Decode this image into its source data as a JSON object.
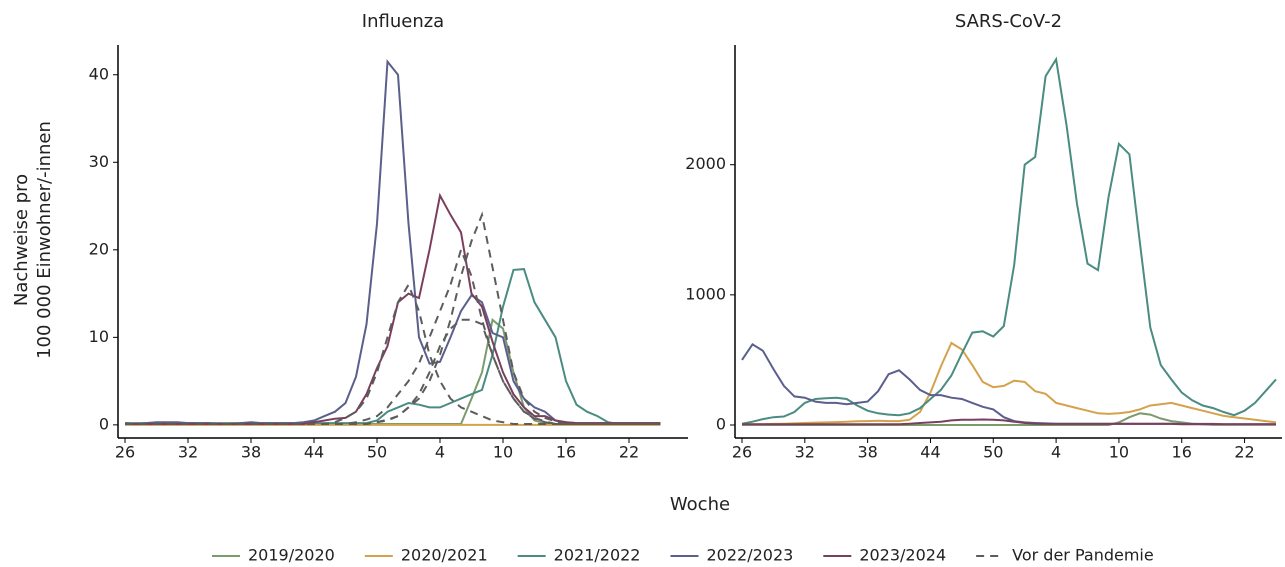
{
  "chart_data": [
    {
      "type": "line",
      "title": "Influenza",
      "ylabel": [
        "Nachweise pro",
        "100 000 Einwohner/-innen"
      ],
      "xlabel": "Woche",
      "legend": "bottom",
      "categories": [
        26,
        null,
        null,
        null,
        null,
        null,
        32,
        null,
        null,
        null,
        null,
        null,
        38,
        null,
        null,
        null,
        null,
        null,
        44,
        null,
        null,
        null,
        null,
        null,
        50,
        null,
        null,
        null,
        null,
        null,
        4,
        null,
        null,
        null,
        null,
        null,
        10,
        null,
        null,
        null,
        null,
        null,
        16,
        null,
        null,
        null,
        null,
        null,
        22,
        null,
        null,
        null
      ],
      "ylim": [
        -1.5,
        43.4
      ],
      "yticks": [
        0,
        10,
        20,
        30,
        40
      ],
      "series": [
        {
          "name": "2019/2020",
          "color": "#7a9b6b",
          "values": [
            0.1,
            0.1,
            0.1,
            0.1,
            0.1,
            0.1,
            0.1,
            0.1,
            0.1,
            0.1,
            0.1,
            0.1,
            0.1,
            0.1,
            0.1,
            0.1,
            0.1,
            0.1,
            0.1,
            0.1,
            0.1,
            0.1,
            0.1,
            0.1,
            0.1,
            0.1,
            0.1,
            0.1,
            0.1,
            0.1,
            0.1,
            0.1,
            0.1,
            3,
            6,
            12,
            11,
            6,
            2,
            0.5,
            0.2,
            0.1,
            0.1,
            0.1,
            0.1,
            0.1,
            0.1,
            0.1,
            0.1,
            0.1,
            0.1,
            0.1
          ]
        },
        {
          "name": "2020/2021",
          "color": "#d4a24c",
          "values": [
            0,
            0,
            0,
            0,
            0,
            0,
            0,
            0,
            0,
            0,
            0,
            0,
            0,
            0,
            0,
            0,
            0,
            0,
            0,
            0,
            0,
            0,
            0,
            0,
            0,
            0,
            0,
            0,
            0,
            0,
            0,
            0,
            0,
            0,
            0,
            0,
            0,
            0,
            0,
            0,
            0,
            0,
            0,
            0,
            0,
            0,
            0,
            0,
            0,
            0,
            0,
            0
          ]
        },
        {
          "name": "2021/2022",
          "color": "#4a8c82",
          "values": [
            0.2,
            0.2,
            0.2,
            0.2,
            0.2,
            0.2,
            0.2,
            0.2,
            0.2,
            0.2,
            0.2,
            0.2,
            0.2,
            0.2,
            0.2,
            0.2,
            0.2,
            0.2,
            0.2,
            0.2,
            0.2,
            0.2,
            0.2,
            0.2,
            0.5,
            1.5,
            2,
            2.5,
            2.3,
            2,
            2,
            2.5,
            3,
            3.5,
            4,
            8,
            13.5,
            17.7,
            17.8,
            14,
            12,
            10,
            5,
            2.3,
            1.5,
            1,
            0.3,
            0.1,
            0.1,
            0.1,
            0.1,
            0.1
          ]
        },
        {
          "name": "2022/2023",
          "color": "#5a5f8c",
          "values": [
            0.2,
            0.1,
            0.2,
            0.3,
            0.3,
            0.3,
            0.2,
            0.2,
            0.2,
            0.1,
            0.1,
            0.2,
            0.3,
            0.2,
            0.2,
            0.2,
            0.2,
            0.3,
            0.5,
            1,
            1.5,
            2.5,
            5.5,
            11.5,
            23,
            41.5,
            40,
            23,
            10,
            7,
            7.2,
            10,
            13,
            14.8,
            14,
            10.5,
            10,
            5,
            3,
            2,
            1.5,
            0.5,
            0.3,
            0.2,
            0.2,
            0.2,
            0.2,
            0.2,
            0.2,
            0.2,
            0.2,
            0.2
          ]
        },
        {
          "name": "2023/2024",
          "color": "#7b3f5e",
          "values": [
            0.1,
            0.1,
            0.1,
            0.1,
            0.1,
            0.1,
            0.1,
            0.1,
            0.1,
            0.1,
            0.1,
            0.1,
            0.1,
            0.1,
            0.1,
            0.1,
            0.1,
            0.1,
            0.3,
            0.5,
            0.7,
            0.8,
            1.5,
            3.5,
            6.5,
            9,
            14,
            15,
            14.5,
            20,
            26.2,
            24,
            22,
            15,
            13.5,
            9.5,
            6,
            3.5,
            2,
            1,
            1,
            0.5,
            0.3,
            0.2,
            0.2,
            0.2,
            0.2,
            0.2,
            0.2,
            0.2,
            0.2,
            0.2
          ]
        },
        {
          "name": "Vor der Pandemie",
          "color": "#5c5c5c",
          "dashed": true,
          "values": [
            [
              0.1,
              0.1,
              0.1,
              0.1,
              0.1,
              0.1,
              0.1,
              0.1,
              0.1,
              0.1,
              0.1,
              0.1,
              0.1,
              0.1,
              0.1,
              0.1,
              0.1,
              0.1,
              0.1,
              0.1,
              0.3,
              0.8,
              1.5,
              3,
              6,
              10,
              14,
              16,
              13,
              8,
              5,
              3,
              2,
              1.5,
              1,
              0.5,
              0.3,
              0.1,
              0.1,
              0.1,
              0.1,
              0.1,
              0.1,
              0.1,
              0.1,
              0.1,
              0.1,
              0.1,
              0.1,
              0.1,
              0.1,
              0.1
            ],
            [
              0.1,
              0.1,
              0.1,
              0.1,
              0.1,
              0.1,
              0.1,
              0.1,
              0.1,
              0.1,
              0.1,
              0.1,
              0.1,
              0.1,
              0.1,
              0.1,
              0.1,
              0.1,
              0.1,
              0.1,
              0.1,
              0.1,
              0.1,
              0.1,
              0.3,
              0.6,
              1,
              2,
              3,
              5,
              8,
              12,
              17,
              21,
              24,
              18,
              12,
              6,
              3,
              1.5,
              0.8,
              0.4,
              0.1,
              0.1,
              0.1,
              0.1,
              0.1,
              0.1,
              0.1,
              0.1,
              0.1,
              0.1
            ],
            [
              0.1,
              0.1,
              0.1,
              0.1,
              0.1,
              0.1,
              0.1,
              0.1,
              0.1,
              0.1,
              0.1,
              0.1,
              0.1,
              0.1,
              0.1,
              0.1,
              0.1,
              0.1,
              0.1,
              0.1,
              0.1,
              0.1,
              0.3,
              0.6,
              1,
              2,
              3.5,
              5,
              7,
              10,
              13,
              16,
              20,
              17,
              12,
              8,
              5,
              3,
              1.5,
              0.8,
              0.4,
              0.1,
              0.1,
              0.1,
              0.1,
              0.1,
              0.1,
              0.1,
              0.1,
              0.1,
              0.1,
              0.1
            ],
            [
              0.1,
              0.1,
              0.1,
              0.1,
              0.1,
              0.1,
              0.1,
              0.1,
              0.1,
              0.1,
              0.1,
              0.1,
              0.1,
              0.1,
              0.1,
              0.1,
              0.1,
              0.1,
              0.1,
              0.1,
              0.1,
              0.1,
              0.1,
              0.1,
              0.3,
              0.5,
              1,
              2,
              3.5,
              6,
              9,
              11,
              12,
              12,
              11.5,
              8,
              5,
              3,
              1.5,
              0.7,
              0.3,
              0.1,
              0.1,
              0.1,
              0.1,
              0.1,
              0.1,
              0.1,
              0.1,
              0.1,
              0.1,
              0.1
            ]
          ]
        }
      ]
    },
    {
      "type": "line",
      "title": "SARS-CoV-2",
      "categories": [
        26,
        null,
        null,
        null,
        null,
        null,
        32,
        null,
        null,
        null,
        null,
        null,
        38,
        null,
        null,
        null,
        null,
        null,
        44,
        null,
        null,
        null,
        null,
        null,
        50,
        null,
        null,
        null,
        null,
        null,
        4,
        null,
        null,
        null,
        null,
        null,
        10,
        null,
        null,
        null,
        null,
        null,
        16,
        null,
        null,
        null,
        null,
        null,
        22,
        null,
        null,
        null
      ],
      "ylim": [
        -100,
        2920
      ],
      "yticks": [
        0,
        1000,
        2000
      ],
      "series": [
        {
          "color": "#7a9b6b",
          "values": [
            0,
            0,
            0,
            0,
            0,
            0,
            0,
            0,
            0,
            0,
            0,
            0,
            0,
            0,
            0,
            0,
            0,
            0,
            0,
            0,
            0,
            0,
            0,
            0,
            0,
            0,
            0,
            0,
            0,
            0,
            0,
            0,
            0,
            0,
            0,
            0,
            20,
            60,
            90,
            80,
            50,
            30,
            20,
            10,
            5,
            2,
            2,
            2,
            2,
            2,
            2,
            2
          ]
        },
        {
          "color": "#d4a24c",
          "values": [
            5,
            5,
            5,
            8,
            10,
            12,
            15,
            18,
            20,
            22,
            25,
            28,
            30,
            32,
            30,
            30,
            40,
            100,
            250,
            450,
            630,
            580,
            460,
            330,
            290,
            300,
            340,
            330,
            260,
            240,
            170,
            150,
            130,
            110,
            90,
            85,
            90,
            100,
            120,
            150,
            160,
            170,
            150,
            130,
            110,
            90,
            70,
            60,
            50,
            40,
            30,
            20
          ]
        },
        {
          "color": "#4a8c82",
          "values": [
            10,
            25,
            45,
            60,
            65,
            100,
            170,
            200,
            205,
            210,
            200,
            150,
            110,
            90,
            80,
            75,
            90,
            130,
            200,
            270,
            380,
            550,
            710,
            720,
            680,
            760,
            1230,
            2000,
            2060,
            2680,
            2810,
            2300,
            1700,
            1240,
            1190,
            1750,
            2160,
            2080,
            1400,
            750,
            460,
            350,
            250,
            190,
            150,
            130,
            100,
            75,
            110,
            170,
            260,
            350
          ]
        },
        {
          "color": "#5a5f8c",
          "values": [
            500,
            620,
            570,
            430,
            300,
            220,
            210,
            180,
            170,
            170,
            160,
            170,
            180,
            260,
            390,
            420,
            350,
            270,
            230,
            230,
            210,
            200,
            170,
            140,
            120,
            60,
            30,
            20,
            15,
            12,
            10,
            10,
            10,
            10,
            10,
            10,
            10,
            10,
            10,
            10,
            10,
            10,
            8,
            8,
            8,
            8,
            5,
            5,
            5,
            5,
            5,
            5
          ]
        },
        {
          "color": "#7b3f5e",
          "values": [
            5,
            5,
            5,
            5,
            5,
            5,
            5,
            5,
            5,
            5,
            5,
            5,
            5,
            5,
            5,
            5,
            10,
            15,
            20,
            25,
            35,
            40,
            40,
            42,
            40,
            35,
            25,
            15,
            10,
            8,
            8,
            8,
            8,
            8,
            8,
            8,
            8,
            8,
            8,
            8,
            8,
            8,
            5,
            5,
            5,
            5,
            5,
            5,
            5,
            5,
            5,
            5
          ]
        }
      ]
    }
  ]
}
